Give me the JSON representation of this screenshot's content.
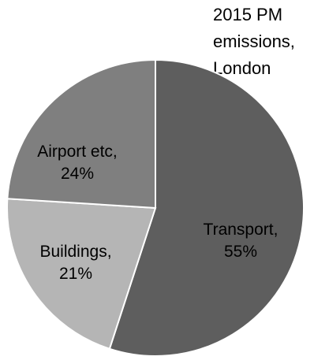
{
  "chart_data": {
    "type": "pie",
    "title_lines": [
      "2015 PM",
      "emissions,",
      "London"
    ],
    "slices": [
      {
        "label": "Transport,",
        "value_label": "55%",
        "value": 55,
        "color": "#5e5e5e"
      },
      {
        "label": "Buildings,",
        "value_label": "21%",
        "value": 21,
        "color": "#b5b5b5"
      },
      {
        "label": "Airport etc,",
        "value_label": "24%",
        "value": 24,
        "color": "#7f7f7f"
      }
    ],
    "start_angle_deg": 0,
    "direction": "clockwise"
  }
}
